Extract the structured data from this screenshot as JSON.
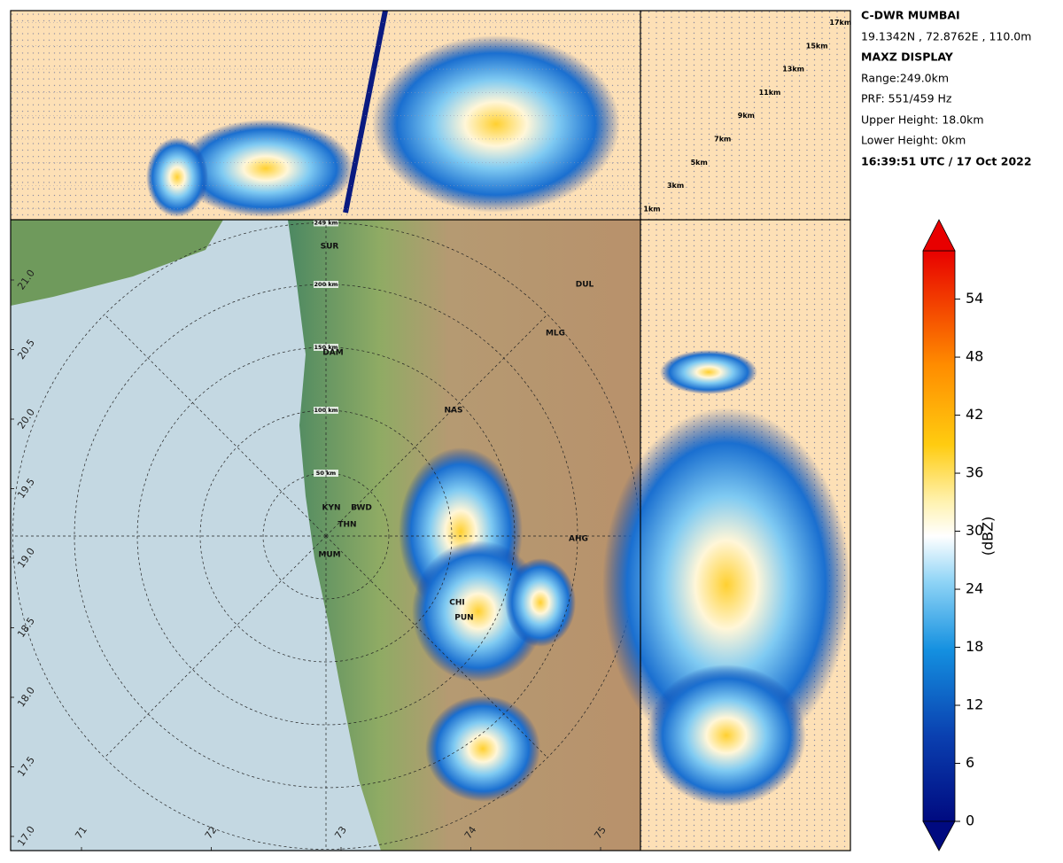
{
  "info": {
    "station": "C-DWR MUMBAI",
    "coords": "19.1342N , 72.8762E , 110.0m",
    "display": "MAXZ DISPLAY",
    "range": "Range:249.0km",
    "prf": "PRF: 551/459 Hz",
    "upper_height": "Upper Height: 18.0km",
    "lower_height": "Lower Height: 0km",
    "time": "16:39:51 UTC / 17 Oct 2022"
  },
  "height_ticks": [
    {
      "value": 1,
      "label": "1km"
    },
    {
      "value": 3,
      "label": "3km"
    },
    {
      "value": 5,
      "label": "5km"
    },
    {
      "value": 7,
      "label": "7km"
    },
    {
      "value": 9,
      "label": "9km"
    },
    {
      "value": 11,
      "label": "11km"
    },
    {
      "value": 13,
      "label": "13km"
    },
    {
      "value": 15,
      "label": "15km"
    },
    {
      "value": 17,
      "label": "17km"
    }
  ],
  "range_rings": [
    {
      "value": 50,
      "label": "50 km"
    },
    {
      "value": 100,
      "label": "100 km"
    },
    {
      "value": 150,
      "label": "150 km"
    },
    {
      "value": 200,
      "label": "200 km"
    },
    {
      "value": 249,
      "label": "249 km"
    }
  ],
  "lat_ticks": [
    {
      "value": 17,
      "label": "17.0"
    },
    {
      "value": 17.5,
      "label": "17.5"
    },
    {
      "value": 18,
      "label": "18.0"
    },
    {
      "value": 18.5,
      "label": "18.5"
    },
    {
      "value": 19,
      "label": "19.0"
    },
    {
      "value": 19.5,
      "label": "19.5"
    },
    {
      "value": 20,
      "label": "20.0"
    },
    {
      "value": 20.5,
      "label": "20.5"
    },
    {
      "value": 21,
      "label": "21.0"
    }
  ],
  "lon_ticks": [
    71,
    72,
    73,
    74,
    75
  ],
  "cities": [
    "SUR",
    "DUL",
    "MLG",
    "DAM",
    "NAS",
    "KYN",
    "BWD",
    "THN",
    "MUM",
    "AHG",
    "CHI",
    "PUN"
  ],
  "colorbar": {
    "label": "(dBZ)",
    "lim": [
      0,
      59
    ],
    "ticks": [
      0,
      6,
      12,
      18,
      24,
      30,
      36,
      42,
      48,
      54
    ]
  }
}
